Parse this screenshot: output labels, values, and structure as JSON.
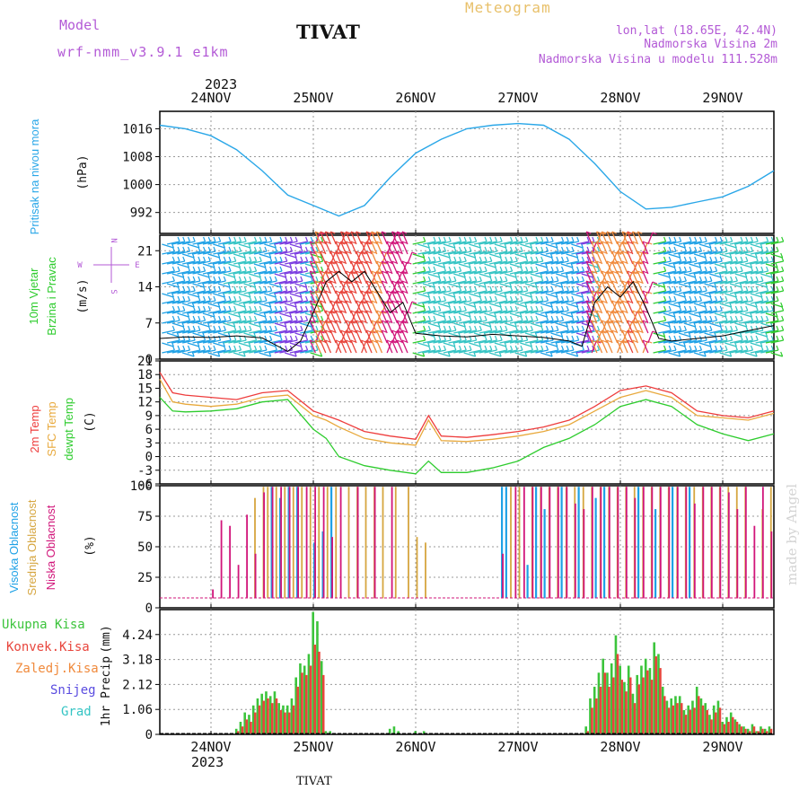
{
  "header": {
    "model_label": "Model",
    "model_name": "wrf-nmm_v3.9.1 e1km",
    "station_title": "TIVAT",
    "chart_title": "Meteogram",
    "location": "lon,lat (18.65E, 42.4N)",
    "elevation": "Nadmorska Visina 2m",
    "model_elevation": "Nadmorska Visina u modelu 111.528m",
    "footer_station": "TIVAT",
    "credit": "made by Angel"
  },
  "colors": {
    "pressure": "#2aa7e8",
    "temp_2m": "#ee3c3c",
    "temp_sfc": "#e8a93c",
    "dewpoint": "#2ecc2e",
    "cloud_high": "#1ea1e6",
    "cloud_mid": "#d6a640",
    "cloud_low": "#d1157a",
    "precip_total": "#3cc43c",
    "precip_conv": "#e8453c",
    "precip_frz": "#f08a3c",
    "precip_snow": "#5a4ce0",
    "precip_hail": "#34c4c4",
    "title_purple": "#b35ad6",
    "meteogram_gold": "#e8c06a"
  },
  "chart_data": [
    {
      "type": "line",
      "id": "pressure",
      "title": "",
      "ylabel": "Pritisak na nivou mora",
      "unit": "(hPa)",
      "x_start": "2023-11-23T12:00",
      "x_end": "2023-11-29T12:00",
      "x_tick_labels": [
        "24NOV",
        "25NOV",
        "26NOV",
        "27NOV",
        "28NOV",
        "29NOV"
      ],
      "year_label": "2023",
      "ylim": [
        986,
        1021
      ],
      "yticks": [
        992,
        1000,
        1008,
        1016
      ],
      "grid": true,
      "series": [
        {
          "color_key": "pressure",
          "x_hours": [
            0,
            6,
            12,
            18,
            24,
            30,
            36,
            42,
            48,
            54,
            60,
            66,
            72,
            78,
            84,
            90,
            96,
            102,
            108,
            114,
            120,
            126,
            132,
            138,
            144
          ],
          "values": [
            1017,
            1016,
            1014,
            1010,
            1004,
            997,
            994,
            991,
            994,
            1002,
            1009,
            1013,
            1016,
            1017,
            1017.5,
            1017,
            1013,
            1006,
            998,
            993,
            993.5,
            995,
            996.5,
            999.5,
            1004
          ]
        }
      ]
    },
    {
      "type": "line",
      "id": "wind",
      "title": "",
      "ylabel": "10m Vjetar Brzina i Pravac",
      "unit": "(m/s)",
      "compass": [
        "N",
        "E",
        "S",
        "W"
      ],
      "ylim": [
        0,
        24
      ],
      "yticks": [
        0,
        7,
        14,
        21
      ],
      "grid": true,
      "series": [
        {
          "color": "#000000",
          "x_hours": [
            0,
            6,
            12,
            18,
            24,
            30,
            33,
            36,
            39,
            42,
            45,
            48,
            51,
            54,
            57,
            60,
            66,
            72,
            78,
            84,
            90,
            96,
            99,
            102,
            105,
            108,
            111,
            114,
            117,
            120,
            126,
            132,
            138,
            144
          ],
          "values": [
            4,
            4.3,
            4.2,
            4.5,
            4.1,
            1.5,
            3.5,
            9,
            15,
            17,
            15,
            17,
            13,
            9,
            11,
            5,
            4.5,
            4.3,
            4.8,
            4.5,
            4.2,
            3.5,
            2.5,
            11,
            14,
            12,
            15,
            10,
            4,
            3.5,
            4,
            4.5,
            5.5,
            6.5
          ]
        }
      ]
    },
    {
      "type": "line",
      "id": "temperature",
      "title": "",
      "ylabel": [
        "2m Temp",
        "SFC Temp",
        "dewpt Temp"
      ],
      "unit": "(C)",
      "ylim": [
        -6,
        21
      ],
      "yticks": [
        -6,
        -3,
        0,
        3,
        6,
        9,
        12,
        15,
        18,
        21
      ],
      "grid": true,
      "series": [
        {
          "name": "2m Temp",
          "color_key": "temp_2m",
          "x_hours": [
            0,
            3,
            6,
            12,
            18,
            24,
            30,
            36,
            39,
            42,
            48,
            54,
            60,
            63,
            66,
            72,
            78,
            84,
            90,
            96,
            102,
            108,
            114,
            120,
            126,
            132,
            138,
            144
          ],
          "values": [
            18.5,
            14,
            13.5,
            13,
            12.5,
            14,
            14.5,
            10,
            9,
            8,
            5.5,
            4.5,
            3.8,
            9,
            4.5,
            4.2,
            4.8,
            5.5,
            6.5,
            8,
            11,
            14.5,
            15.5,
            14,
            10,
            9,
            8.5,
            10
          ]
        },
        {
          "name": "SFC Temp",
          "color_key": "temp_sfc",
          "x_hours": [
            0,
            3,
            6,
            12,
            18,
            24,
            30,
            36,
            39,
            42,
            48,
            54,
            60,
            63,
            66,
            72,
            78,
            84,
            90,
            96,
            102,
            108,
            114,
            120,
            126,
            132,
            138,
            144
          ],
          "values": [
            17,
            12,
            11.5,
            11,
            11.5,
            13,
            13.5,
            9,
            8,
            6.5,
            4,
            3,
            2.5,
            8,
            3.5,
            3.3,
            3.8,
            4.5,
            5.5,
            7,
            10,
            13,
            14.5,
            13,
            9,
            8.5,
            8,
            9.5
          ]
        },
        {
          "name": "dewpt Temp",
          "color_key": "dewpoint",
          "x_hours": [
            0,
            3,
            6,
            12,
            18,
            24,
            30,
            36,
            39,
            42,
            48,
            54,
            60,
            63,
            66,
            72,
            78,
            84,
            90,
            96,
            102,
            108,
            114,
            120,
            126,
            132,
            138,
            144
          ],
          "values": [
            13,
            10,
            9.8,
            10,
            10.5,
            12,
            12.5,
            6,
            4,
            0,
            -2,
            -3,
            -3.8,
            -1,
            -3.5,
            -3.5,
            -2.5,
            -1,
            2,
            4,
            7,
            11,
            12.5,
            11,
            7,
            5,
            3.5,
            5
          ]
        }
      ]
    },
    {
      "type": "bar",
      "id": "clouds",
      "title": "",
      "ylabel": [
        "Visoka Oblacnost",
        "Srednja Oblacnost",
        "Niska Oblacnost"
      ],
      "unit": "(%)",
      "ylim": [
        0,
        100
      ],
      "yticks": [
        0,
        25,
        50,
        75,
        100
      ],
      "grid": true,
      "series": [
        {
          "name": "Visoka Oblacnost",
          "color_key": "cloud_high",
          "x_hours": [
            26,
            28,
            30,
            32,
            36,
            38,
            40,
            80,
            81,
            86,
            88,
            90,
            94,
            98,
            102,
            104,
            112,
            116,
            120,
            124
          ],
          "values": [
            100,
            90,
            100,
            100,
            50,
            60,
            100,
            100,
            100,
            30,
            100,
            80,
            100,
            100,
            90,
            100,
            100,
            80,
            100,
            100
          ]
        },
        {
          "name": "Srednja Oblacnost",
          "color_key": "cloud_mid",
          "x_hours": [
            22,
            24,
            25,
            27,
            29,
            31,
            33,
            35,
            37,
            39,
            41,
            44,
            46,
            48,
            50,
            52,
            55,
            58,
            60,
            62,
            82,
            84,
            87,
            89,
            91,
            93,
            95,
            97,
            99,
            101,
            103,
            105,
            107,
            109,
            111,
            113,
            115,
            117,
            119,
            121,
            123,
            125,
            127,
            129,
            131,
            133,
            135,
            137,
            141,
            143
          ],
          "values": [
            90,
            100,
            100,
            100,
            100,
            100,
            100,
            100,
            100,
            100,
            100,
            100,
            100,
            100,
            100,
            100,
            100,
            100,
            55,
            50,
            100,
            100,
            100,
            100,
            100,
            100,
            100,
            100,
            100,
            100,
            100,
            100,
            100,
            100,
            100,
            100,
            100,
            100,
            100,
            100,
            100,
            100,
            100,
            100,
            100,
            100,
            100,
            100,
            80,
            100
          ]
        },
        {
          "name": "Niska Oblacnost",
          "color_key": "cloud_low",
          "x_hours": [
            12,
            14,
            16,
            18,
            20,
            22,
            24,
            26,
            28,
            30,
            32,
            34,
            36,
            38,
            40,
            42,
            46,
            50,
            54,
            80,
            83,
            85,
            87,
            89,
            91,
            93,
            95,
            97,
            99,
            101,
            103,
            105,
            107,
            109,
            111,
            113,
            115,
            117,
            119,
            121,
            123,
            125,
            127,
            129,
            131,
            133,
            135,
            137,
            139,
            141,
            143
          ],
          "values": [
            8,
            70,
            65,
            30,
            75,
            40,
            95,
            100,
            100,
            100,
            100,
            100,
            100,
            100,
            55,
            100,
            100,
            100,
            100,
            40,
            100,
            100,
            100,
            100,
            100,
            100,
            100,
            85,
            80,
            100,
            100,
            100,
            100,
            100,
            90,
            100,
            100,
            100,
            100,
            100,
            100,
            85,
            100,
            100,
            100,
            95,
            80,
            100,
            65,
            100,
            60
          ]
        }
      ]
    },
    {
      "type": "bar",
      "id": "precipitation",
      "title": "",
      "ylabel": "1hr Precip",
      "unit": "(mm)",
      "legend": [
        "Ukupna Kisa",
        "Konvek.Kisa",
        "Zaledj.Kisa",
        "Snijeg",
        "Grad"
      ],
      "ylim": [
        0,
        5.3
      ],
      "yticks": [
        0,
        1.06,
        2.12,
        3.18,
        4.24
      ],
      "ytick_labels": [
        "0",
        "1.06",
        "2.12",
        "3.18",
        "4.24"
      ],
      "grid": true,
      "series": [
        {
          "name": "Ukupna Kisa",
          "color_key": "precip_total",
          "x_hours": [
            18,
            19,
            20,
            21,
            22,
            23,
            24,
            25,
            26,
            27,
            28,
            29,
            30,
            31,
            32,
            33,
            34,
            35,
            36,
            37,
            38,
            39,
            40,
            54,
            55,
            56,
            60,
            62,
            100,
            101,
            102,
            103,
            104,
            105,
            106,
            107,
            108,
            109,
            110,
            111,
            112,
            113,
            114,
            115,
            116,
            117,
            118,
            119,
            120,
            121,
            122,
            123,
            124,
            125,
            126,
            127,
            128,
            129,
            130,
            131,
            132,
            133,
            134,
            135,
            136,
            137,
            138,
            139,
            140,
            141,
            142,
            143
          ],
          "values": [
            0.2,
            0.5,
            0.9,
            0.8,
            1.2,
            1.5,
            1.7,
            1.8,
            1.6,
            1.8,
            1.3,
            1.2,
            1.2,
            1.5,
            2.4,
            3.0,
            2.9,
            3.4,
            5.2,
            4.8,
            3.1,
            0.1,
            0.1,
            0.2,
            0.3,
            0.1,
            0.1,
            0.1,
            0.3,
            1.5,
            2.0,
            2.6,
            3.2,
            2.6,
            3.0,
            4.2,
            2.9,
            2.2,
            2.9,
            1.7,
            2.5,
            2.9,
            3.2,
            2.8,
            3.9,
            3.4,
            2.0,
            1.4,
            1.5,
            1.6,
            1.6,
            1.0,
            1.2,
            1.4,
            2.0,
            1.5,
            1.3,
            0.8,
            1.2,
            1.4,
            0.5,
            0.7,
            0.9,
            0.6,
            0.4,
            0.3,
            0.2,
            0.4,
            0.1,
            0.3,
            0.2,
            0.3
          ]
        },
        {
          "name": "Konvek.Kisa",
          "color_key": "precip_conv",
          "x_hours": [
            18,
            19,
            20,
            21,
            22,
            23,
            24,
            25,
            26,
            27,
            28,
            29,
            30,
            31,
            32,
            33,
            34,
            35,
            36,
            37,
            38,
            100,
            101,
            102,
            103,
            104,
            105,
            106,
            107,
            108,
            109,
            110,
            111,
            112,
            113,
            114,
            115,
            116,
            117,
            118,
            119,
            120,
            121,
            122,
            123,
            124,
            125,
            126,
            127,
            128,
            129,
            130,
            131,
            132,
            133,
            134,
            135,
            136,
            137,
            138,
            139,
            140,
            141,
            142,
            143
          ],
          "values": [
            0.1,
            0.3,
            0.6,
            0.5,
            0.9,
            1.2,
            1.4,
            1.5,
            1.3,
            1.5,
            1.0,
            0.9,
            0.9,
            1.2,
            2.0,
            2.6,
            2.5,
            2.9,
            3.8,
            3.5,
            2.5,
            0.1,
            1.1,
            1.5,
            2.0,
            2.6,
            2.0,
            2.4,
            3.4,
            2.3,
            1.8,
            2.4,
            1.3,
            2.1,
            2.4,
            2.7,
            2.3,
            3.3,
            2.8,
            1.6,
            1.1,
            1.2,
            1.3,
            1.3,
            0.8,
            1.0,
            1.1,
            1.6,
            1.2,
            1.0,
            0.6,
            0.9,
            1.1,
            0.4,
            0.5,
            0.7,
            0.5,
            0.3,
            0.2,
            0.1,
            0.3,
            0.1,
            0.2,
            0.1,
            0.2
          ]
        }
      ]
    }
  ]
}
